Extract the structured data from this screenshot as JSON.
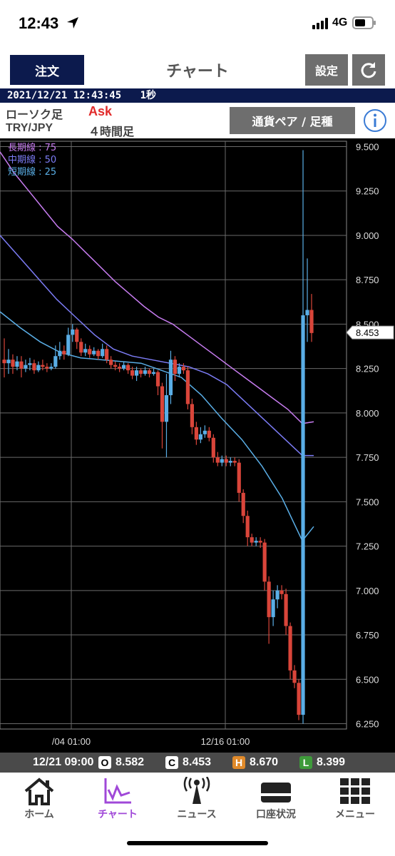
{
  "status_bar": {
    "time": "12:43",
    "network": "4G"
  },
  "header": {
    "order_label": "注文",
    "title": "チャート",
    "settings_label": "設定"
  },
  "time_strip": {
    "datetime": "2021/12/21 12:43:45",
    "interval": "1秒"
  },
  "info_bar": {
    "chart_type": "ローソク足",
    "price_type": "Ask",
    "pair": "TRY/JPY",
    "timeframe": "４時間足",
    "pair_button": "通貨ペア / 足種"
  },
  "legend": [
    {
      "label": "長期線 : 75",
      "color": "#c77cf0"
    },
    {
      "label": "中期線 : 50",
      "color": "#7c7cf5"
    },
    {
      "label": "短期線 : 25",
      "color": "#5aaee6"
    }
  ],
  "ohlc": {
    "datetime": "12/21 09:00",
    "open_tag": "O",
    "open": "8.582",
    "close_tag": "C",
    "close": "8.453",
    "high_tag": "H",
    "high": "8.670",
    "low_tag": "L",
    "low": "8.399"
  },
  "tabs": [
    {
      "label": "ホーム",
      "icon": "home-icon",
      "active": false
    },
    {
      "label": "チャート",
      "icon": "chart-icon",
      "active": true
    },
    {
      "label": "ニュース",
      "icon": "news-icon",
      "active": false
    },
    {
      "label": "口座状況",
      "icon": "card-icon",
      "active": false
    },
    {
      "label": "メニュー",
      "icon": "menu-grid-icon",
      "active": false
    }
  ],
  "colors": {
    "navy": "#0c1a4d",
    "gray_button": "#6e6e6e",
    "bull": "#5aaee6",
    "bear": "#d9453a",
    "long_ma": "#c77cf0",
    "mid_ma": "#7c7cf5",
    "short_ma": "#5aaee6",
    "active_tab": "#a048d8"
  },
  "chart_data": {
    "type": "candlestick",
    "pair": "TRY/JPY",
    "timeframe": "4h",
    "y_ticks": [
      "9.500",
      "9.250",
      "9.000",
      "8.750",
      "8.500",
      "8.250",
      "8.000",
      "7.750",
      "7.500",
      "7.250",
      "7.000",
      "6.750",
      "6.500",
      "6.250"
    ],
    "ylim": [
      6.22,
      9.53
    ],
    "x_ticks": [
      "/04 01:00",
      "12/16 01:00"
    ],
    "current_price": "8.453",
    "candles": [
      [
        8.3,
        8.28,
        8.42,
        8.2
      ],
      [
        8.28,
        8.3,
        8.36,
        8.22
      ],
      [
        8.3,
        8.26,
        8.33,
        8.22
      ],
      [
        8.26,
        8.29,
        8.32,
        8.24
      ],
      [
        8.29,
        8.25,
        8.32,
        8.2
      ],
      [
        8.25,
        8.27,
        8.3,
        8.23
      ],
      [
        8.27,
        8.28,
        8.31,
        8.24
      ],
      [
        8.28,
        8.24,
        8.3,
        8.22
      ],
      [
        8.24,
        8.27,
        8.29,
        8.23
      ],
      [
        8.27,
        8.26,
        8.3,
        8.24
      ],
      [
        8.26,
        8.25,
        8.28,
        8.23
      ],
      [
        8.25,
        8.26,
        8.28,
        8.24
      ],
      [
        8.26,
        8.32,
        8.38,
        8.25
      ],
      [
        8.32,
        8.35,
        8.4,
        8.3
      ],
      [
        8.35,
        8.33,
        8.38,
        8.3
      ],
      [
        8.33,
        8.44,
        8.48,
        8.32
      ],
      [
        8.44,
        8.47,
        8.5,
        8.4
      ],
      [
        8.47,
        8.4,
        8.48,
        8.36
      ],
      [
        8.4,
        8.34,
        8.42,
        8.32
      ],
      [
        8.34,
        8.36,
        8.39,
        8.32
      ],
      [
        8.36,
        8.33,
        8.38,
        8.31
      ],
      [
        8.33,
        8.35,
        8.37,
        8.32
      ],
      [
        8.35,
        8.32,
        8.36,
        8.3
      ],
      [
        8.32,
        8.36,
        8.39,
        8.31
      ],
      [
        8.36,
        8.3,
        8.38,
        8.28
      ],
      [
        8.3,
        8.27,
        8.32,
        8.25
      ],
      [
        8.27,
        8.26,
        8.29,
        8.24
      ],
      [
        8.26,
        8.25,
        8.28,
        8.23
      ],
      [
        8.25,
        8.27,
        8.29,
        8.24
      ],
      [
        8.27,
        8.24,
        8.28,
        8.22
      ],
      [
        8.24,
        8.21,
        8.26,
        8.19
      ],
      [
        8.21,
        8.24,
        8.26,
        8.18
      ],
      [
        8.24,
        8.22,
        8.25,
        8.2
      ],
      [
        8.22,
        8.24,
        8.26,
        8.21
      ],
      [
        8.24,
        8.22,
        8.25,
        8.2
      ],
      [
        8.22,
        8.23,
        8.25,
        8.21
      ],
      [
        8.23,
        8.15,
        8.24,
        8.1
      ],
      [
        8.15,
        7.95,
        8.17,
        7.8
      ],
      [
        7.95,
        8.1,
        8.22,
        7.75
      ],
      [
        8.1,
        8.3,
        8.35,
        8.05
      ],
      [
        8.3,
        8.22,
        8.32,
        8.18
      ],
      [
        8.22,
        8.26,
        8.28,
        8.2
      ],
      [
        8.26,
        8.24,
        8.28,
        8.22
      ],
      [
        8.24,
        8.05,
        8.26,
        8.02
      ],
      [
        8.05,
        7.92,
        8.08,
        7.88
      ],
      [
        7.92,
        7.85,
        7.95,
        7.82
      ],
      [
        7.85,
        7.88,
        7.92,
        7.83
      ],
      [
        7.88,
        7.9,
        7.93,
        7.86
      ],
      [
        7.9,
        7.86,
        7.92,
        7.84
      ],
      [
        7.86,
        7.75,
        7.88,
        7.72
      ],
      [
        7.75,
        7.72,
        7.78,
        7.7
      ],
      [
        7.72,
        7.74,
        7.76,
        7.7
      ],
      [
        7.74,
        7.72,
        7.76,
        7.7
      ],
      [
        7.72,
        7.73,
        7.75,
        7.7
      ],
      [
        7.73,
        7.72,
        7.75,
        7.7
      ],
      [
        7.72,
        7.55,
        7.74,
        7.5
      ],
      [
        7.55,
        7.42,
        7.57,
        7.38
      ],
      [
        7.42,
        7.3,
        7.45,
        7.25
      ],
      [
        7.3,
        7.27,
        7.32,
        7.25
      ],
      [
        7.27,
        7.28,
        7.3,
        7.25
      ],
      [
        7.28,
        7.27,
        7.3,
        7.24
      ],
      [
        7.27,
        7.05,
        7.29,
        7.0
      ],
      [
        7.05,
        6.85,
        7.08,
        6.7
      ],
      [
        6.85,
        6.95,
        7.0,
        6.8
      ],
      [
        6.95,
        7.0,
        7.03,
        6.9
      ],
      [
        7.0,
        6.98,
        7.03,
        6.95
      ],
      [
        6.98,
        6.8,
        7.01,
        6.75
      ],
      [
        6.8,
        6.55,
        6.82,
        6.5
      ],
      [
        6.55,
        6.48,
        6.58,
        6.45
      ],
      [
        6.48,
        6.3,
        6.5,
        6.27
      ],
      [
        6.3,
        8.55,
        9.48,
        6.25
      ],
      [
        8.55,
        8.58,
        8.87,
        8.4
      ],
      [
        8.58,
        8.45,
        8.67,
        8.4
      ]
    ],
    "ma_long": [
      9.47,
      9.35,
      9.25,
      9.15,
      9.05,
      8.98,
      8.9,
      8.82,
      8.74,
      8.67,
      8.6,
      8.54,
      8.5,
      8.44,
      8.38,
      8.32,
      8.26,
      8.2,
      8.14,
      8.08,
      8.02,
      7.94,
      7.95
    ],
    "ma_mid": [
      9.0,
      8.88,
      8.76,
      8.64,
      8.54,
      8.44,
      8.36,
      8.32,
      8.3,
      8.28,
      8.26,
      8.22,
      8.16,
      8.06,
      7.96,
      7.86,
      7.76,
      7.76
    ],
    "ma_short": [
      8.57,
      8.48,
      8.4,
      8.34,
      8.31,
      8.3,
      8.29,
      8.28,
      8.24,
      8.2,
      8.1,
      7.97,
      7.85,
      7.7,
      7.52,
      7.28,
      7.36
    ]
  }
}
